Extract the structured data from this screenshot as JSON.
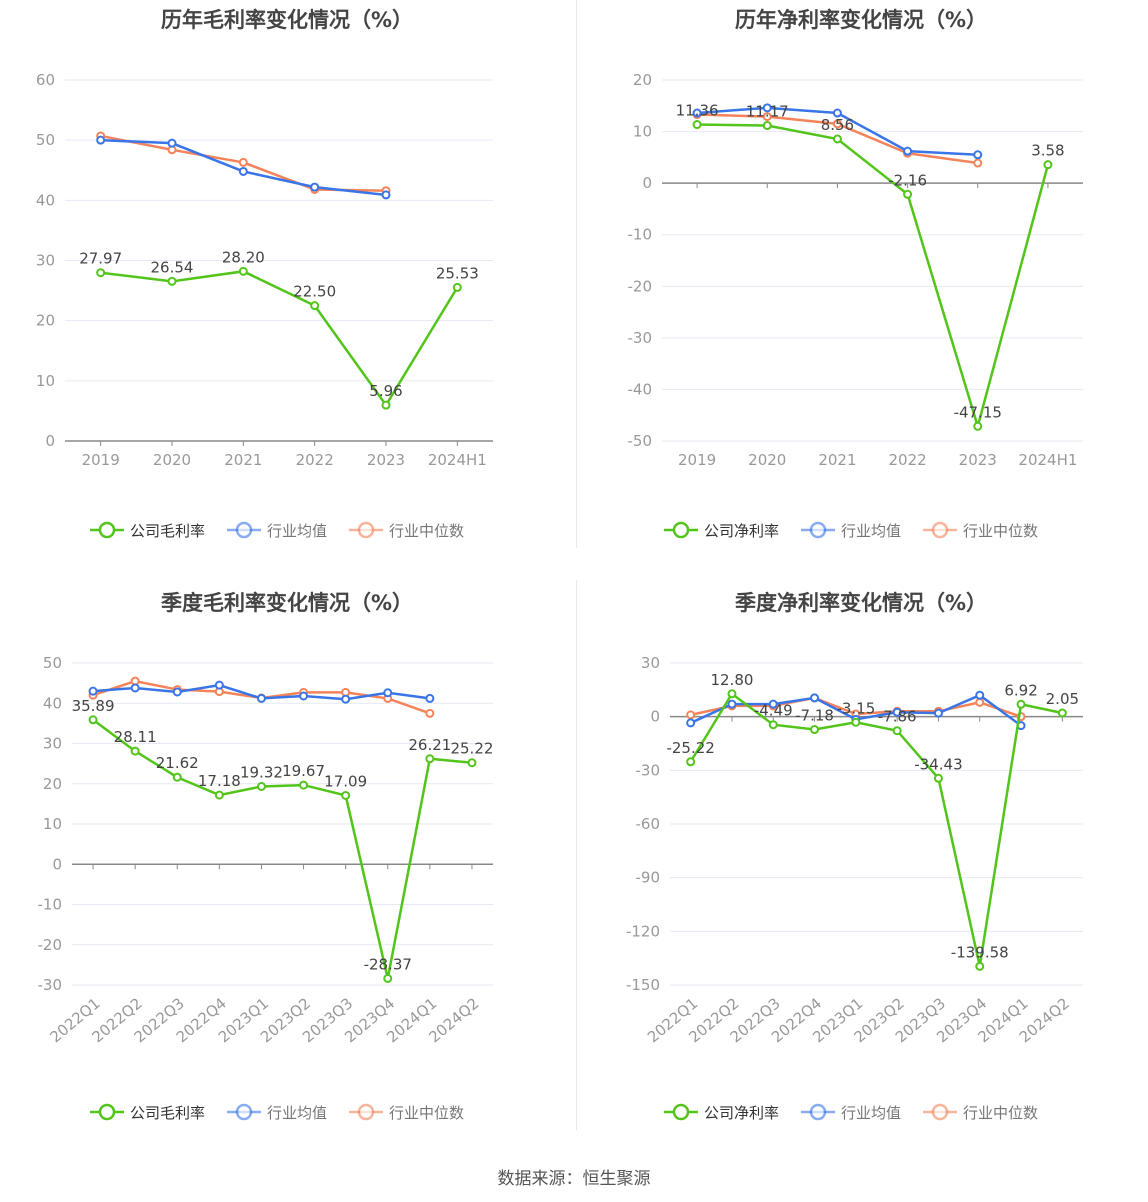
{
  "legend_labels": [
    "行业均值",
    "行业中位数"
  ],
  "colors": {
    "company": "#52c41a",
    "avg": "#3a75e8",
    "median": "#f5835a",
    "grid": "#e6e9f4",
    "axis": "#888",
    "text": "#999"
  },
  "footer": "数据来源：恒生聚源",
  "chart_data": [
    {
      "type": "line",
      "title": "历年毛利率变化情况（%）",
      "categories": [
        "2019",
        "2020",
        "2021",
        "2022",
        "2023",
        "2024H1"
      ],
      "ylim": [
        0,
        60
      ],
      "yticks": [
        0,
        10,
        20,
        30,
        40,
        50,
        60
      ],
      "grid": true,
      "legend": "bottom",
      "series": [
        {
          "name": "公司毛利率",
          "values": [
            27.97,
            26.54,
            28.2,
            22.5,
            5.96,
            25.53
          ],
          "labels": [
            "27.97",
            "26.54",
            "28.20",
            "22.50",
            "5.96",
            "25.53"
          ]
        },
        {
          "name": "行业均值",
          "values": [
            50.0,
            49.5,
            44.8,
            42.2,
            40.9,
            null
          ]
        },
        {
          "name": "行业中位数",
          "values": [
            50.7,
            48.4,
            46.3,
            41.8,
            41.6,
            null
          ]
        }
      ]
    },
    {
      "type": "line",
      "title": "历年净利率变化情况（%）",
      "categories": [
        "2019",
        "2020",
        "2021",
        "2022",
        "2023",
        "2024H1"
      ],
      "ylim": [
        -50,
        20
      ],
      "yticks": [
        -50,
        -40,
        -30,
        -20,
        -10,
        0,
        10,
        20
      ],
      "grid": true,
      "legend": "bottom",
      "series": [
        {
          "name": "公司净利率",
          "values": [
            11.36,
            11.17,
            8.56,
            -2.16,
            -47.15,
            3.58
          ],
          "labels": [
            "11.36",
            "11.17",
            "8.56",
            "-2.16",
            "-47.15",
            "3.58"
          ]
        },
        {
          "name": "行业均值",
          "values": [
            13.6,
            14.6,
            13.6,
            6.2,
            5.5,
            null
          ]
        },
        {
          "name": "行业中位数",
          "values": [
            13.3,
            12.9,
            11.5,
            5.8,
            3.9,
            null
          ]
        }
      ]
    },
    {
      "type": "line",
      "title": "季度毛利率变化情况（%）",
      "categories": [
        "2022Q1",
        "2022Q2",
        "2022Q3",
        "2022Q4",
        "2023Q1",
        "2023Q2",
        "2023Q3",
        "2023Q4",
        "2024Q1",
        "2024Q2"
      ],
      "ylim": [
        -30,
        50
      ],
      "yticks": [
        -30,
        -20,
        -10,
        0,
        10,
        20,
        30,
        40,
        50
      ],
      "grid": true,
      "legend": "bottom",
      "series": [
        {
          "name": "公司毛利率",
          "values": [
            35.89,
            28.11,
            21.62,
            17.18,
            19.32,
            19.67,
            17.09,
            -28.37,
            26.21,
            25.22
          ],
          "labels": [
            "35.89",
            "28.11",
            "21.62",
            "17.18",
            "19.32",
            "19.67",
            "17.09",
            "-28.37",
            "26.21",
            "25.22"
          ]
        },
        {
          "name": "行业均值",
          "values": [
            43.0,
            43.8,
            42.8,
            44.5,
            41.2,
            41.8,
            41.0,
            42.6,
            41.2,
            null
          ]
        },
        {
          "name": "行业中位数",
          "values": [
            42.0,
            45.5,
            43.4,
            42.9,
            41.3,
            42.7,
            42.7,
            41.2,
            37.5,
            null
          ]
        }
      ]
    },
    {
      "type": "line",
      "title": "季度净利率变化情况（%）",
      "categories": [
        "2022Q1",
        "2022Q2",
        "2022Q3",
        "2022Q4",
        "2023Q1",
        "2023Q2",
        "2023Q3",
        "2023Q4",
        "2024Q1",
        "2024Q2"
      ],
      "ylim": [
        -150,
        30
      ],
      "yticks": [
        -150,
        -120,
        -90,
        -60,
        -30,
        0,
        30
      ],
      "grid": true,
      "legend": "bottom",
      "series": [
        {
          "name": "公司净利率",
          "values": [
            -25.22,
            12.8,
            -4.49,
            -7.18,
            -3.15,
            -7.86,
            -34.43,
            -139.58,
            6.92,
            2.05
          ],
          "labels": [
            "-25.22",
            "12.80",
            "-4.49",
            "-7.18",
            "-3.15",
            "-7.86",
            "-34.43",
            "-139.58",
            "6.92",
            "2.05"
          ]
        },
        {
          "name": "行业均值",
          "values": [
            -3.5,
            7.0,
            7.0,
            10.5,
            -1.5,
            2.5,
            2.0,
            12.0,
            -5.0,
            null
          ]
        },
        {
          "name": "行业中位数",
          "values": [
            1.0,
            6.0,
            6.0,
            10.5,
            1.5,
            3.0,
            3.0,
            8.0,
            0.0,
            null
          ]
        }
      ]
    }
  ]
}
